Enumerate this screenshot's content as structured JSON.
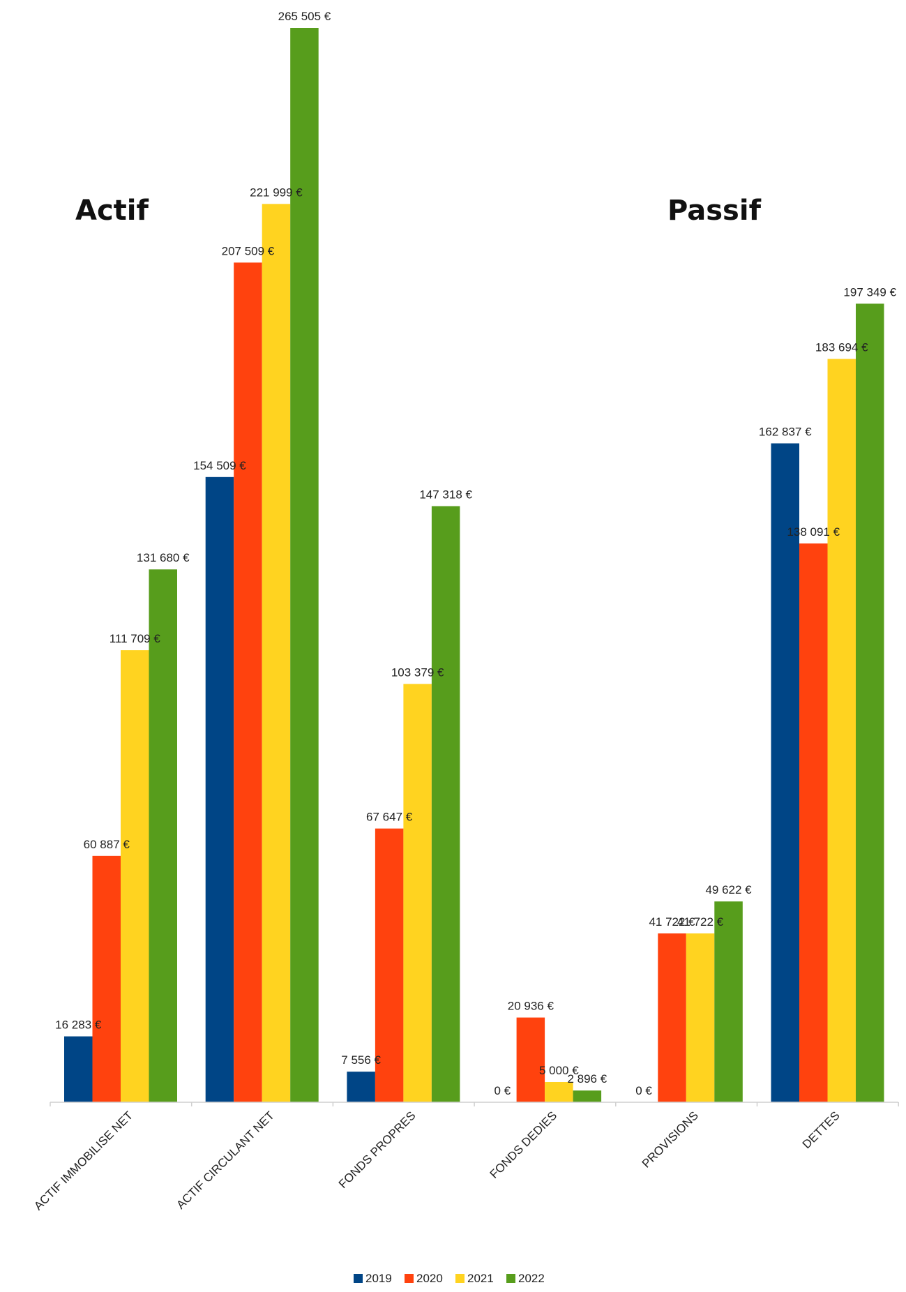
{
  "headings": {
    "left": "Actif",
    "right": "Passif"
  },
  "chart_data": {
    "type": "bar",
    "categories": [
      "ACTIF IMMOBILISE NET",
      "ACTIF CIRCULANT NET",
      "FONDS PROPRES",
      "FONDS DEDIES",
      "PROVISIONS",
      "DETTES"
    ],
    "series": [
      {
        "name": "2019",
        "color": "#004586",
        "values": [
          16283,
          154509,
          7556,
          0,
          0,
          162837
        ],
        "labels": [
          "16 283 €",
          "154 509 €",
          "7 556 €",
          "0 €",
          "0 €",
          "162 837 €"
        ]
      },
      {
        "name": "2020",
        "color": "#ff420e",
        "values": [
          60887,
          207509,
          67647,
          20936,
          41722,
          138091
        ],
        "labels": [
          "60 887 €",
          "207 509 €",
          "67 647 €",
          "20 936 €",
          "41 722 €",
          "138 091 €"
        ]
      },
      {
        "name": "2021",
        "color": "#ffd320",
        "values": [
          111709,
          221999,
          103379,
          5000,
          41722,
          183694
        ],
        "labels": [
          "111 709 €",
          "221 999 €",
          "103 379 €",
          "5 000 €",
          "41 722 €",
          "183 694 €"
        ]
      },
      {
        "name": "2022",
        "color": "#579d1c",
        "values": [
          131680,
          265505,
          147318,
          2896,
          49622,
          197349
        ],
        "labels": [
          "131 680 €",
          "265 505 €",
          "147 318 €",
          "2 896 €",
          "49 622 €",
          "197 349 €"
        ]
      }
    ],
    "ylim": [
      0,
      265505
    ],
    "grid": false,
    "legend_position": "bottom"
  }
}
